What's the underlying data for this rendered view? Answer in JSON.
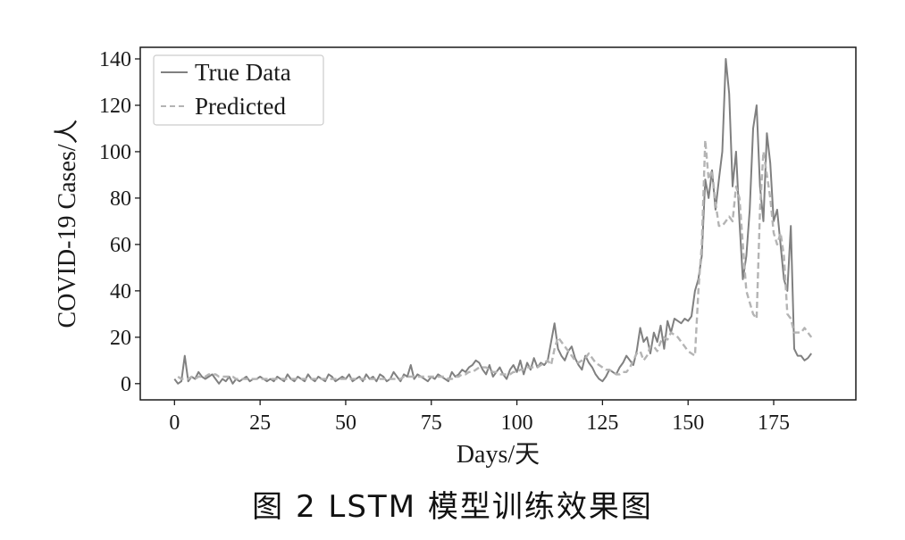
{
  "caption": "图 2  LSTM 模型训练效果图",
  "chart_data": {
    "type": "line",
    "xlabel": "Days/天",
    "ylabel": "COVID-19 Cases/人",
    "xlim": [
      -10,
      199
    ],
    "ylim": [
      -7,
      145
    ],
    "xticks": [
      0,
      25,
      50,
      75,
      100,
      125,
      150,
      175
    ],
    "yticks": [
      0,
      20,
      40,
      60,
      80,
      100,
      120,
      140
    ],
    "grid": false,
    "legend_position": "top-left",
    "series": [
      {
        "name": "True Data",
        "style": "solid",
        "color": "#808080",
        "values": [
          2,
          0,
          1,
          12,
          1,
          3,
          2,
          5,
          3,
          2,
          3,
          4,
          2,
          0,
          2,
          1,
          3,
          0,
          2,
          1,
          2,
          3,
          1,
          2,
          2,
          3,
          2,
          1,
          2,
          1,
          3,
          2,
          1,
          4,
          2,
          1,
          3,
          2,
          1,
          4,
          2,
          1,
          3,
          2,
          1,
          4,
          3,
          1,
          2,
          3,
          2,
          4,
          1,
          2,
          3,
          1,
          4,
          2,
          3,
          1,
          4,
          3,
          1,
          2,
          5,
          3,
          1,
          4,
          3,
          8,
          2,
          4,
          3,
          2,
          1,
          3,
          2,
          4,
          3,
          2,
          1,
          5,
          3,
          4,
          6,
          5,
          7,
          8,
          10,
          9,
          6,
          4,
          8,
          3,
          5,
          7,
          4,
          2,
          6,
          8,
          5,
          10,
          4,
          9,
          6,
          11,
          7,
          9,
          8,
          10,
          18,
          26,
          15,
          12,
          10,
          14,
          16,
          11,
          8,
          6,
          12,
          9,
          7,
          4,
          2,
          1,
          3,
          6,
          5,
          4,
          7,
          9,
          12,
          10,
          8,
          14,
          24,
          18,
          20,
          13,
          22,
          18,
          25,
          15,
          27,
          22,
          28,
          27,
          26,
          28,
          27,
          29,
          40,
          45,
          55,
          88,
          80,
          92,
          75,
          88,
          100,
          140,
          125,
          85,
          100,
          70,
          45,
          55,
          75,
          110,
          120,
          85,
          70,
          108,
          95,
          70,
          75,
          60,
          45,
          40,
          68,
          15,
          12,
          12,
          10,
          11,
          13
        ],
        "x0": 0
      },
      {
        "name": "Predicted",
        "style": "dashed",
        "color": "#b4b4b4",
        "values": [
          3,
          2,
          2,
          2,
          3,
          2,
          3,
          3,
          3,
          4,
          4,
          4,
          3,
          3,
          3,
          3,
          3,
          2,
          2,
          2,
          2,
          2,
          2,
          2,
          2,
          2,
          2,
          2,
          2,
          2,
          2,
          2,
          2,
          2,
          2,
          2,
          2,
          2,
          2,
          2,
          2,
          2,
          2,
          2,
          2,
          2,
          2,
          2,
          2,
          2,
          2,
          2,
          2,
          2,
          2,
          2,
          2,
          2,
          2,
          2,
          2,
          2,
          2,
          2,
          2,
          2,
          3,
          3,
          3,
          3,
          3,
          3,
          3,
          3,
          3,
          3,
          3,
          3,
          3,
          2,
          2,
          3,
          3,
          4,
          4,
          5,
          5,
          6,
          7,
          7,
          7,
          6,
          5,
          5,
          4,
          4,
          4,
          4,
          5,
          5,
          6,
          6,
          7,
          7,
          7,
          7,
          8,
          9,
          10,
          8,
          15,
          20,
          18,
          16,
          14,
          12,
          10,
          9,
          10,
          11,
          13,
          11,
          9,
          8,
          7,
          6,
          6,
          5,
          4,
          4,
          5,
          5,
          7,
          10,
          13,
          14,
          10,
          12,
          16,
          16,
          14,
          18,
          20,
          19,
          22,
          21,
          20,
          18,
          16,
          14,
          13,
          12,
          40,
          60,
          105,
          88,
          92,
          78,
          68,
          68,
          70,
          72,
          70,
          85,
          80,
          60,
          40,
          35,
          30,
          28,
          75,
          100,
          90,
          80,
          65,
          60,
          65,
          55,
          30,
          28,
          22,
          22,
          22,
          24,
          22,
          20
        ],
        "x0": 1
      }
    ]
  }
}
